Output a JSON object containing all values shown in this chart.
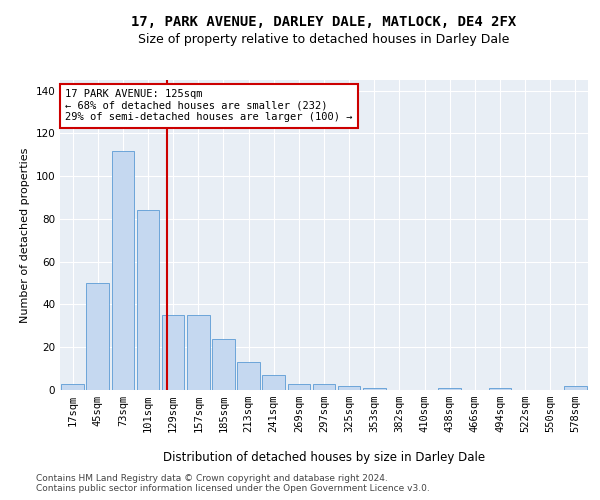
{
  "title1": "17, PARK AVENUE, DARLEY DALE, MATLOCK, DE4 2FX",
  "title2": "Size of property relative to detached houses in Darley Dale",
  "xlabel": "Distribution of detached houses by size in Darley Dale",
  "ylabel": "Number of detached properties",
  "categories": [
    "17sqm",
    "45sqm",
    "73sqm",
    "101sqm",
    "129sqm",
    "157sqm",
    "185sqm",
    "213sqm",
    "241sqm",
    "269sqm",
    "297sqm",
    "325sqm",
    "353sqm",
    "382sqm",
    "410sqm",
    "438sqm",
    "466sqm",
    "494sqm",
    "522sqm",
    "550sqm",
    "578sqm"
  ],
  "values": [
    3,
    50,
    112,
    84,
    35,
    35,
    24,
    13,
    7,
    3,
    3,
    2,
    1,
    0,
    0,
    1,
    0,
    1,
    0,
    0,
    2
  ],
  "bar_color": "#c5d8f0",
  "bar_edge_color": "#5b9bd5",
  "bar_width": 0.9,
  "vline_x": 3.75,
  "vline_color": "#cc0000",
  "annotation_line1": "17 PARK AVENUE: 125sqm",
  "annotation_line2": "← 68% of detached houses are smaller (232)",
  "annotation_line3": "29% of semi-detached houses are larger (100) →",
  "annotation_box_color": "white",
  "annotation_box_edge": "#cc0000",
  "ylim": [
    0,
    145
  ],
  "yticks": [
    0,
    20,
    40,
    60,
    80,
    100,
    120,
    140
  ],
  "background_color": "#e8eef5",
  "grid_color": "#ffffff",
  "footer1": "Contains HM Land Registry data © Crown copyright and database right 2024.",
  "footer2": "Contains public sector information licensed under the Open Government Licence v3.0.",
  "title1_fontsize": 10,
  "title2_fontsize": 9,
  "xlabel_fontsize": 8.5,
  "ylabel_fontsize": 8,
  "tick_fontsize": 7.5,
  "annotation_fontsize": 7.5,
  "footer_fontsize": 6.5
}
